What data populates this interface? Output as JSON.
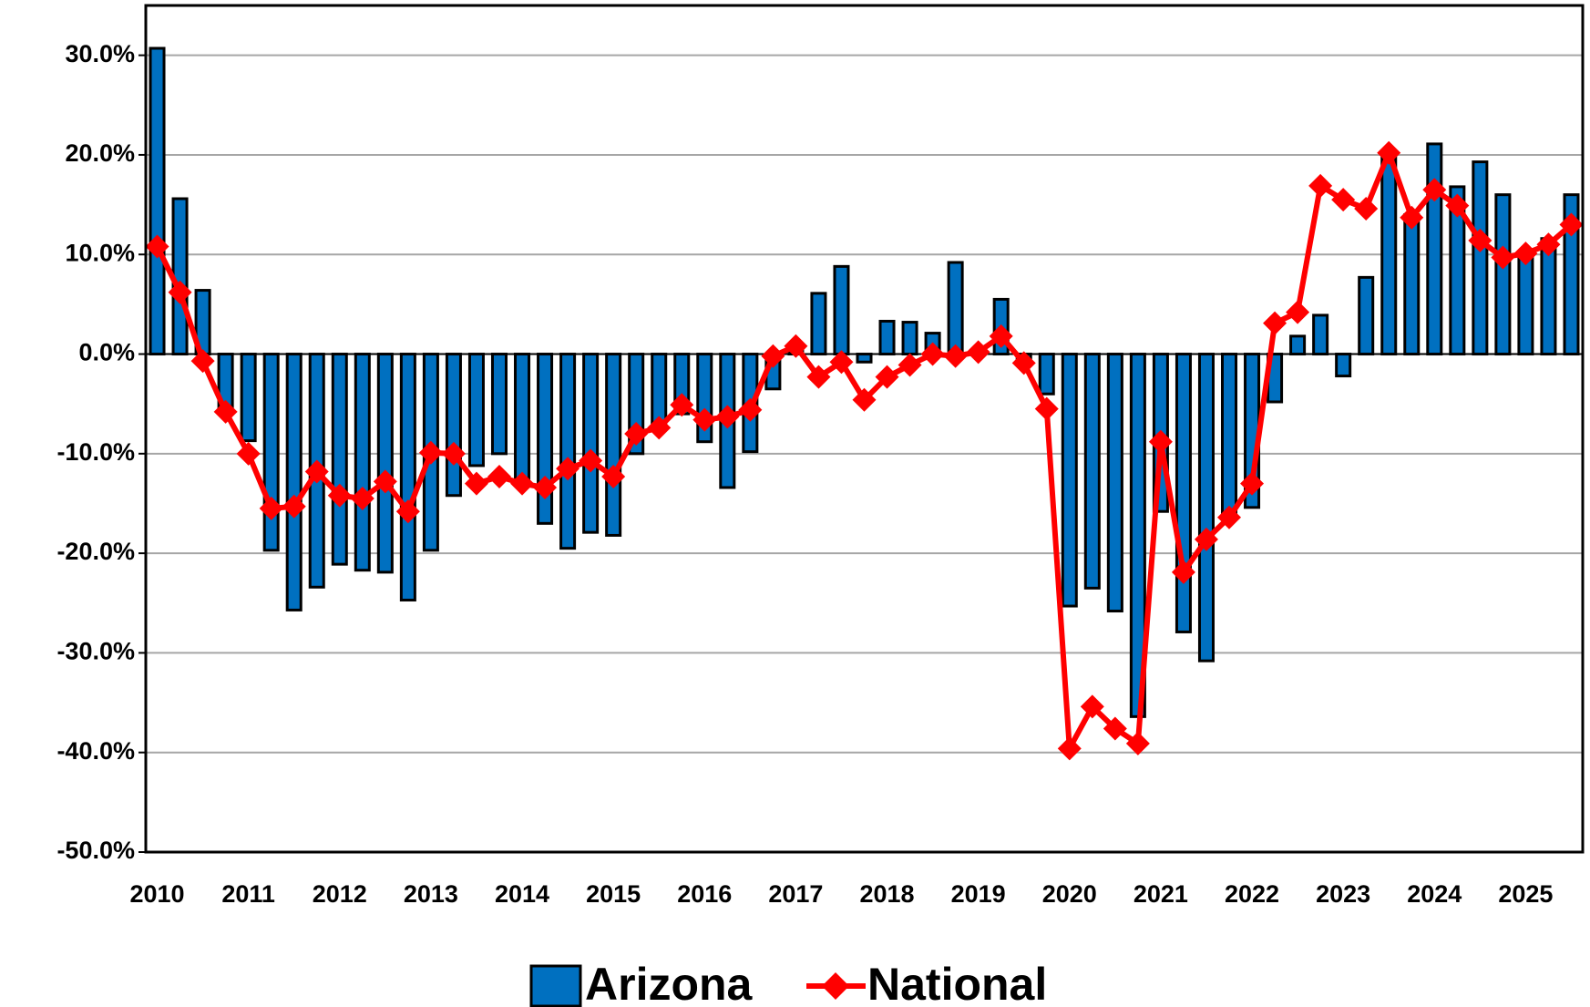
{
  "chart_data": {
    "type": "bar-line",
    "categories": [
      "2010",
      null,
      null,
      null,
      "2011",
      null,
      null,
      null,
      "2012",
      null,
      null,
      null,
      "2013",
      null,
      null,
      null,
      "2014",
      null,
      null,
      null,
      "2015",
      null,
      null,
      null,
      "2016",
      null,
      null,
      null,
      "2017",
      null,
      null,
      null,
      "2018",
      null,
      null,
      null,
      "2019",
      null,
      null,
      null,
      "2020",
      null,
      null,
      null,
      "2021",
      null,
      null,
      null,
      "2022",
      null,
      null,
      null,
      "2023",
      null,
      null,
      null,
      "2024",
      null,
      null,
      null,
      "2025",
      null,
      null
    ],
    "series": [
      {
        "name": "Arizona",
        "type": "bar",
        "color": "#0070c0",
        "values": [
          30.7,
          15.6,
          6.4,
          -5.5,
          -8.7,
          -19.7,
          -25.7,
          -23.4,
          -21.1,
          -21.7,
          -21.9,
          -24.7,
          -19.7,
          -14.2,
          -11.2,
          -10.0,
          -12.5,
          -17.0,
          -19.5,
          -17.9,
          -18.2,
          -10.0,
          -7.5,
          -6.0,
          -8.8,
          -13.4,
          -9.8,
          -3.5,
          0.5,
          6.1,
          8.8,
          -0.8,
          3.3,
          3.2,
          2.1,
          9.2,
          0.3,
          5.5,
          -0.5,
          -4.0,
          -25.3,
          -23.5,
          -25.8,
          -36.4,
          -15.8,
          -27.9,
          -30.8,
          -16.0,
          -15.4,
          -4.8,
          1.8,
          3.9,
          -2.2,
          7.7,
          20.0,
          14.0,
          21.1,
          16.8,
          19.3,
          16.0,
          10.2,
          11.6,
          16.0
        ]
      },
      {
        "name": "National",
        "type": "line",
        "color": "#ff0000",
        "values": [
          10.8,
          6.2,
          -0.7,
          -5.8,
          -10.0,
          -15.5,
          -15.3,
          -11.8,
          -14.2,
          -14.5,
          -12.8,
          -15.8,
          -9.9,
          -10.0,
          -13.0,
          -12.3,
          -13.0,
          -13.4,
          -11.5,
          -10.7,
          -12.3,
          -8.0,
          -7.4,
          -5.1,
          -6.6,
          -6.3,
          -5.6,
          -0.2,
          0.8,
          -2.3,
          -0.8,
          -4.6,
          -2.3,
          -1.1,
          0.0,
          -0.2,
          0.2,
          1.8,
          -0.9,
          -5.5,
          -39.6,
          -35.4,
          -37.6,
          -39.1,
          -8.8,
          -21.9,
          -18.6,
          -16.4,
          -13.0,
          3.1,
          4.2,
          16.9,
          15.5,
          14.6,
          20.2,
          13.7,
          16.5,
          14.9,
          11.4,
          9.7,
          10.1,
          11.0,
          13.0
        ]
      }
    ],
    "ylim": [
      -50,
      35
    ],
    "yticks": [
      {
        "value": 30,
        "label": "30.0%"
      },
      {
        "value": 20,
        "label": "20.0%"
      },
      {
        "value": 10,
        "label": "10.0%"
      },
      {
        "value": 0,
        "label": "0.0%"
      },
      {
        "value": -10,
        "label": "-10.0%"
      },
      {
        "value": -20,
        "label": "-20.0%"
      },
      {
        "value": -30,
        "label": "-30.0%"
      },
      {
        "value": -40,
        "label": "-40.0%"
      },
      {
        "value": -50,
        "label": "-50.0%"
      }
    ],
    "grid": true,
    "legend": "bottom"
  }
}
